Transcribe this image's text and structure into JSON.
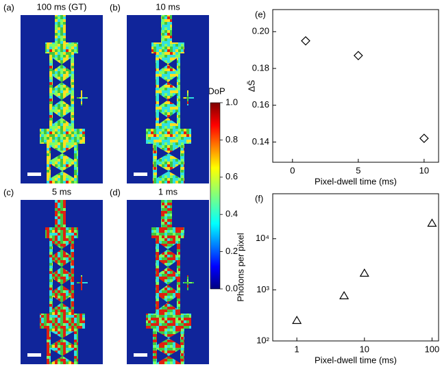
{
  "image_panels": [
    {
      "label": "(a)",
      "title": "100 ms (GT)"
    },
    {
      "label": "(b)",
      "title": "10 ms"
    },
    {
      "label": "(c)",
      "title": "5 ms"
    },
    {
      "label": "(d)",
      "title": "1 ms"
    }
  ],
  "colorbar": {
    "label": "DoP",
    "lim": [
      0,
      1
    ],
    "ticks": [
      {
        "value": 0,
        "label": "0.0"
      },
      0.2,
      0.4,
      0.6,
      0.8,
      {
        "value": 1,
        "label": "1.0"
      }
    ]
  },
  "chart_data": [
    {
      "type": "scatter",
      "panel_label": "(e)",
      "xlabel": "Pixel-dwell time (ms)",
      "ylabel": "ΔS̄",
      "marker": "diamond",
      "color": "#000000",
      "x": [
        1,
        5,
        10
      ],
      "values": [
        0.195,
        0.187,
        0.142
      ],
      "xlim": [
        -1.5,
        11.1
      ],
      "ylim": [
        0.129,
        0.212
      ],
      "xticks": [
        0,
        5,
        10
      ],
      "yticks": [
        0.14,
        0.16,
        0.18,
        {
          "value": 0.2,
          "label": "0.20"
        }
      ],
      "log": false
    },
    {
      "type": "scatter",
      "panel_label": "(f)",
      "xlabel": "Pixel-dwell time (ms)",
      "ylabel": "Photons per pixel",
      "marker": "triangle",
      "color": "#000000",
      "x": [
        1,
        5,
        10,
        100
      ],
      "values": [
        250,
        760,
        2100,
        20000
      ],
      "xlim": [
        0.44,
        125
      ],
      "ylim": [
        100,
        76000
      ],
      "xticks": [
        1,
        10,
        100
      ],
      "yticks": [
        {
          "value": 100,
          "label": "10²"
        },
        {
          "value": 1000,
          "label": "10³"
        },
        {
          "value": 10000,
          "label": "10⁴"
        }
      ],
      "log": true
    }
  ]
}
